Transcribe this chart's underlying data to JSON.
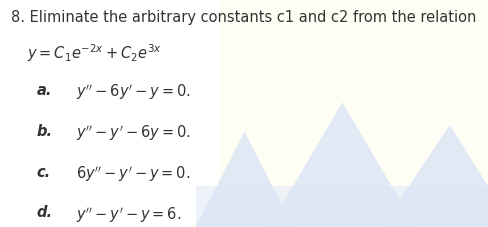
{
  "title": "8. Eliminate the arbitrary constants c1 and c2 from the relation",
  "relation": "$y = C_1e^{-2x} + C_2e^{3x}$",
  "options": [
    {
      "label": "a.",
      "text": "$y'' -6y' - y = 0.$"
    },
    {
      "label": "b.",
      "text": "$y'' -y' - 6y = 0.$"
    },
    {
      "label": "c.",
      "text": "$6y'' -y' - y = 0.$"
    },
    {
      "label": "d.",
      "text": "$y'' -y' - y = 6.$"
    }
  ],
  "bg_color": "#ffffff",
  "mountain_color": "#dce6f5",
  "cream_color": "#fffdf5",
  "text_color": "#333333",
  "title_fontsize": 10.5,
  "relation_fontsize": 10.5,
  "option_fontsize": 10.5
}
